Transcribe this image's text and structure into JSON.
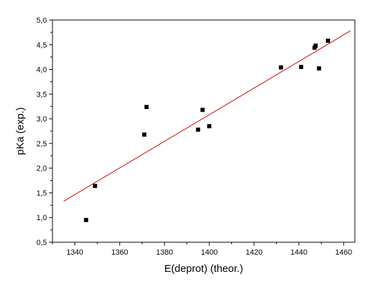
{
  "chart_data": {
    "type": "scatter",
    "xlabel": "E(deprot) (theor.)",
    "ylabel": "pKa (exp.)",
    "xlim": [
      1330,
      1465
    ],
    "ylim": [
      0.5,
      5.0
    ],
    "x_ticks": [
      1340,
      1360,
      1380,
      1400,
      1420,
      1440,
      1460
    ],
    "x_tick_labels": [
      "1340",
      "1360",
      "1380",
      "1400",
      "1420",
      "1440",
      "1460"
    ],
    "y_ticks": [
      0.5,
      1.0,
      1.5,
      2.0,
      2.5,
      3.0,
      3.5,
      4.0,
      4.5,
      5.0
    ],
    "y_tick_labels": [
      "0,5",
      "1,0",
      "1,5",
      "2,0",
      "2,5",
      "3,0",
      "3,5",
      "4,0",
      "4,5",
      "5,0"
    ],
    "grid": false,
    "series": [
      {
        "marker": "square",
        "color": "#000000",
        "points": [
          {
            "x": 1345,
            "y": 0.95
          },
          {
            "x": 1349,
            "y": 1.64
          },
          {
            "x": 1371,
            "y": 2.68
          },
          {
            "x": 1372,
            "y": 3.24
          },
          {
            "x": 1395,
            "y": 2.78
          },
          {
            "x": 1397,
            "y": 3.18
          },
          {
            "x": 1400,
            "y": 2.85
          },
          {
            "x": 1432,
            "y": 4.04
          },
          {
            "x": 1441,
            "y": 4.05
          },
          {
            "x": 1447,
            "y": 4.44
          },
          {
            "x": 1447.5,
            "y": 4.48
          },
          {
            "x": 1449,
            "y": 4.02
          },
          {
            "x": 1453,
            "y": 4.58
          }
        ]
      }
    ],
    "fit_line": {
      "color": "#cc0000",
      "from": {
        "x": 1335,
        "y": 1.33
      },
      "to": {
        "x": 1463,
        "y": 4.78
      }
    }
  }
}
